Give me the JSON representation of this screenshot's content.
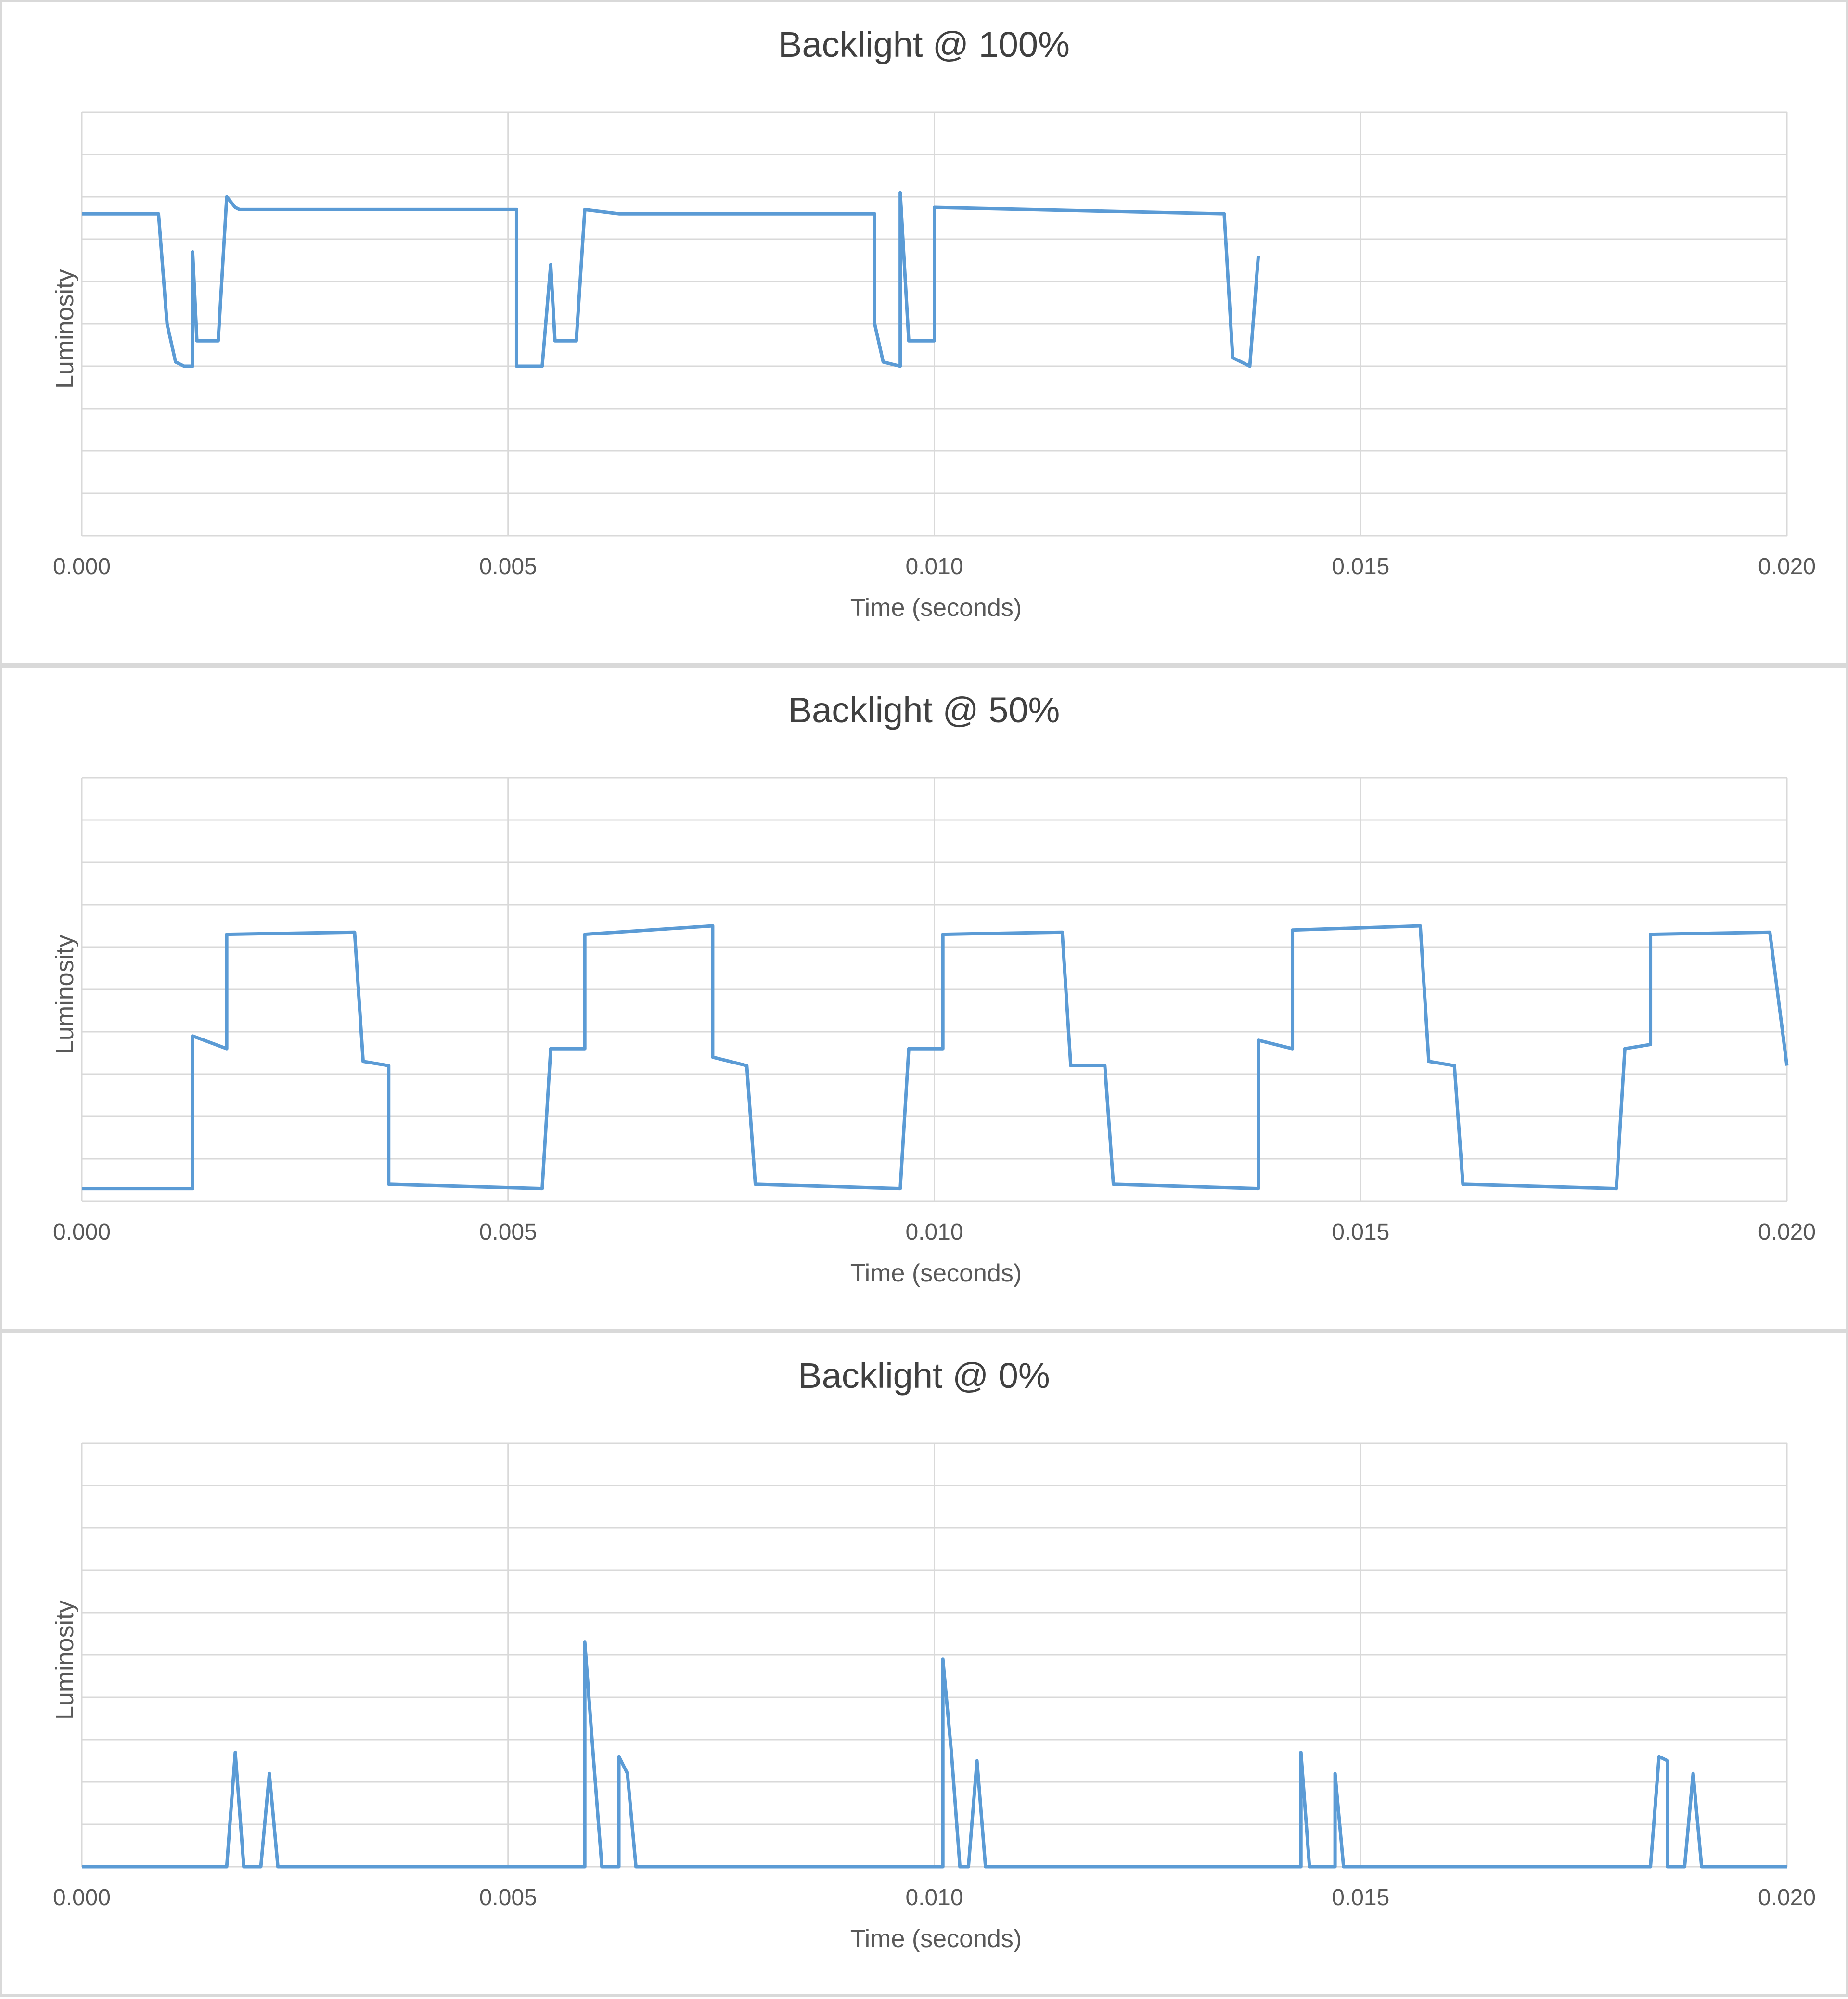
{
  "colors": {
    "series": "#5b9bd5",
    "grid": "#d9d9d9",
    "text": "#595959",
    "title": "#404040"
  },
  "chart_data": [
    {
      "type": "line",
      "title": "Backlight @ 100%",
      "xlabel": "Time (seconds)",
      "ylabel": "Luminosity",
      "xlim": [
        0,
        0.02
      ],
      "ylim": [
        0,
        10
      ],
      "xticks": [
        "0.000",
        "0.005",
        "0.010",
        "0.015",
        "0.020"
      ],
      "grid": true,
      "series": [
        {
          "points": [
            [
              0.0,
              7.6
            ],
            [
              0.0009,
              7.6
            ],
            [
              0.001,
              5.0
            ],
            [
              0.0011,
              4.1
            ],
            [
              0.0012,
              4.0
            ],
            [
              0.0013,
              4.0
            ],
            [
              0.0013,
              6.7
            ],
            [
              0.00135,
              4.6
            ],
            [
              0.0016,
              4.6
            ],
            [
              0.0017,
              8.0
            ],
            [
              0.0018,
              7.75
            ],
            [
              0.0051,
              7.7
            ],
            [
              0.0051,
              4.0
            ],
            [
              0.0054,
              4.0
            ],
            [
              0.0055,
              6.4
            ],
            [
              0.00555,
              4.6
            ],
            [
              0.0058,
              4.6
            ],
            [
              0.0059,
              7.7
            ],
            [
              0.0063,
              7.6
            ],
            [
              0.0093,
              7.6
            ],
            [
              0.0093,
              5.0
            ],
            [
              0.0094,
              4.1
            ],
            [
              0.0096,
              4.0
            ],
            [
              0.0096,
              8.1
            ],
            [
              0.0097,
              4.6
            ],
            [
              0.01,
              4.6
            ],
            [
              0.01,
              7.75
            ],
            [
              0.0134,
              7.6
            ],
            [
              0.0135,
              4.2
            ],
            [
              0.0137,
              4.0
            ],
            [
              0.0138,
              6.6
            ],
            [
              0.00185,
              7.7
            ]
          ]
        }
      ]
    },
    {
      "type": "line",
      "title": "Backlight @ 50%",
      "xlabel": "Time (seconds)",
      "ylabel": "Luminosity",
      "xlim": [
        0,
        0.02
      ],
      "ylim": [
        0,
        10
      ],
      "xticks": [
        "0.000",
        "0.005",
        "0.010",
        "0.015",
        "0.020"
      ],
      "grid": true,
      "series": [
        {
          "points": [
            [
              0.0,
              0.3
            ],
            [
              0.0013,
              0.3
            ],
            [
              0.0013,
              3.9
            ],
            [
              0.0017,
              3.6
            ],
            [
              0.0017,
              6.3
            ],
            [
              0.0032,
              6.35
            ],
            [
              0.0033,
              3.3
            ],
            [
              0.0036,
              3.2
            ],
            [
              0.0036,
              0.4
            ],
            [
              0.0054,
              0.3
            ],
            [
              0.0055,
              3.6
            ],
            [
              0.0059,
              3.6
            ],
            [
              0.0059,
              6.3
            ],
            [
              0.0074,
              6.5
            ],
            [
              0.0074,
              3.4
            ],
            [
              0.0078,
              3.2
            ],
            [
              0.0079,
              0.4
            ],
            [
              0.0096,
              0.3
            ],
            [
              0.0097,
              3.6
            ],
            [
              0.0101,
              3.6
            ],
            [
              0.0101,
              6.3
            ],
            [
              0.0115,
              6.35
            ],
            [
              0.0116,
              3.2
            ],
            [
              0.012,
              3.2
            ],
            [
              0.0121,
              0.4
            ],
            [
              0.0138,
              0.3
            ],
            [
              0.0138,
              3.8
            ],
            [
              0.0142,
              3.6
            ],
            [
              0.0142,
              6.4
            ],
            [
              0.0157,
              6.5
            ],
            [
              0.0158,
              3.3
            ],
            [
              0.0161,
              3.2
            ],
            [
              0.0162,
              0.4
            ],
            [
              0.018,
              0.3
            ],
            [
              0.0181,
              3.6
            ],
            [
              0.0184,
              3.7
            ],
            [
              0.0184,
              6.3
            ],
            [
              0.0198,
              6.35
            ],
            [
              0.02,
              3.2
            ]
          ]
        }
      ]
    },
    {
      "type": "line",
      "title": "Backlight @ 0%",
      "xlabel": "Time (seconds)",
      "ylabel": "Luminosity",
      "xlim": [
        0,
        0.02
      ],
      "ylim": [
        0,
        10
      ],
      "xticks": [
        "0.000",
        "0.005",
        "0.010",
        "0.015",
        "0.020"
      ],
      "grid": true,
      "series": [
        {
          "points": [
            [
              0.0,
              0
            ],
            [
              0.0017,
              0
            ],
            [
              0.0018,
              2.7
            ],
            [
              0.0019,
              0
            ],
            [
              0.0021,
              0
            ],
            [
              0.0022,
              2.2
            ],
            [
              0.0023,
              0
            ],
            [
              0.0059,
              0
            ],
            [
              0.0059,
              5.3
            ],
            [
              0.006,
              2.6
            ],
            [
              0.0061,
              0
            ],
            [
              0.0063,
              0
            ],
            [
              0.0063,
              2.6
            ],
            [
              0.0064,
              2.2
            ],
            [
              0.0065,
              0
            ],
            [
              0.0101,
              0
            ],
            [
              0.0101,
              4.9
            ],
            [
              0.0102,
              2.7
            ],
            [
              0.0103,
              0
            ],
            [
              0.0104,
              0
            ],
            [
              0.0105,
              2.5
            ],
            [
              0.0106,
              0
            ],
            [
              0.0143,
              0
            ],
            [
              0.0143,
              2.7
            ],
            [
              0.0144,
              0
            ],
            [
              0.0147,
              0
            ],
            [
              0.0147,
              2.2
            ],
            [
              0.0148,
              0
            ],
            [
              0.0184,
              0
            ],
            [
              0.0185,
              2.6
            ],
            [
              0.0186,
              2.5
            ],
            [
              0.0186,
              0
            ],
            [
              0.0188,
              0
            ],
            [
              0.0189,
              2.2
            ],
            [
              0.019,
              0
            ],
            [
              0.02,
              0
            ]
          ]
        }
      ]
    }
  ]
}
